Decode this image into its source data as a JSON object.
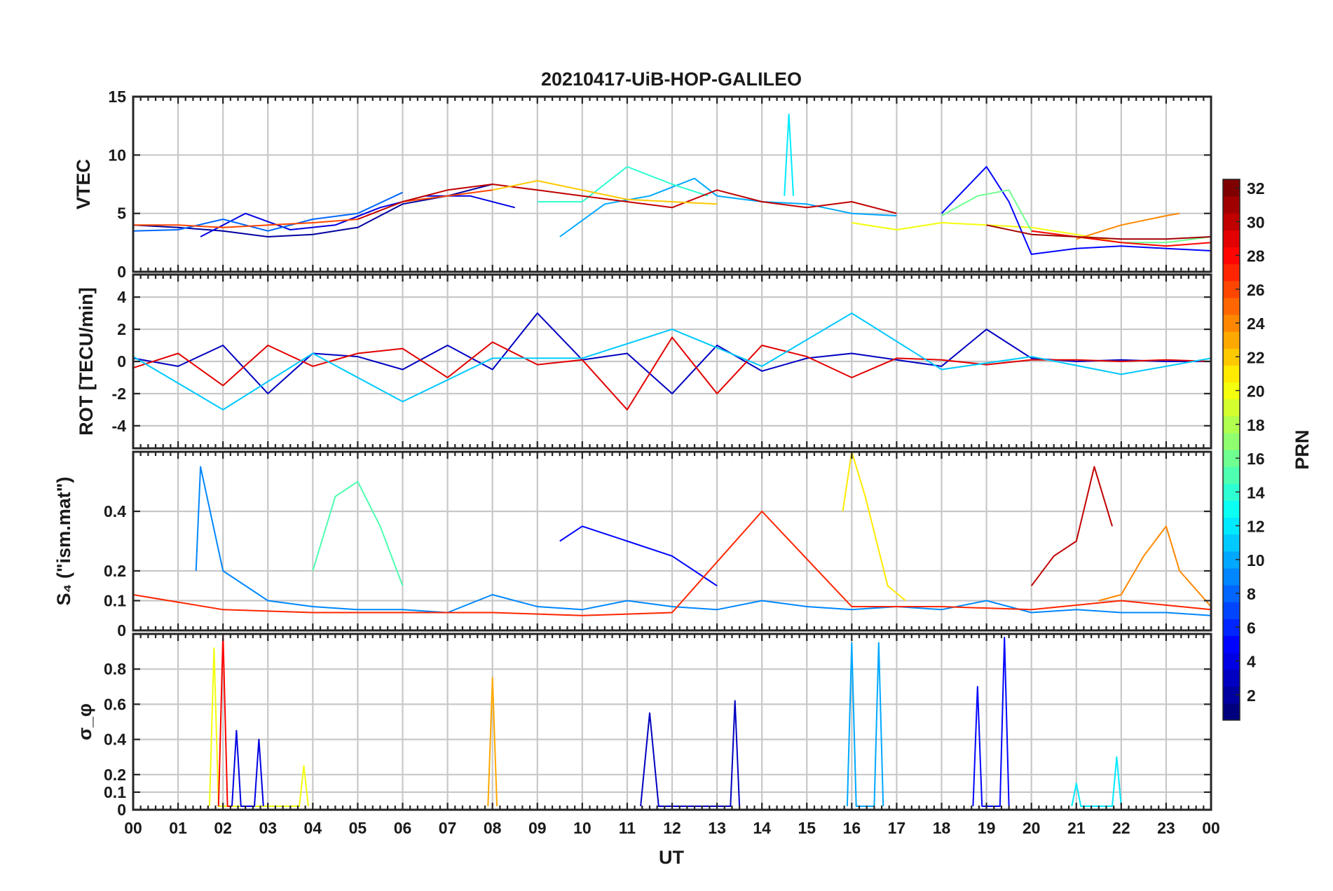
{
  "figure": {
    "title": "20210417-UiB-HOP-GALILEO",
    "xlabel": "UT",
    "x_tick_labels": [
      "00",
      "01",
      "02",
      "03",
      "04",
      "05",
      "06",
      "07",
      "08",
      "09",
      "10",
      "11",
      "12",
      "13",
      "14",
      "15",
      "16",
      "17",
      "18",
      "19",
      "20",
      "21",
      "22",
      "23",
      "00"
    ],
    "colorbar": {
      "label": "PRN",
      "range": [
        1,
        32
      ],
      "tick_labels": [
        "2",
        "4",
        "6",
        "8",
        "10",
        "12",
        "14",
        "16",
        "18",
        "20",
        "22",
        "24",
        "26",
        "28",
        "30",
        "32"
      ],
      "colormap": "jet",
      "colormap_stops": [
        "#00007f",
        "#0000ff",
        "#007fff",
        "#00ffff",
        "#7fff7f",
        "#ffff00",
        "#ff7f00",
        "#ff0000",
        "#7f0000"
      ]
    }
  },
  "chart_data": [
    {
      "type": "line",
      "ylabel": "VTEC",
      "ylim": [
        0,
        15
      ],
      "y_tick_labels": [
        "0",
        "5",
        "10",
        "15"
      ],
      "y_ticks": [
        0,
        5,
        10,
        15
      ],
      "x_unit": "hours UT",
      "xlim": [
        0,
        24
      ],
      "grid": true,
      "series": [
        {
          "prn": 2,
          "x": [
            0,
            1,
            2,
            3,
            4,
            5,
            6,
            7,
            8
          ],
          "y": [
            4,
            3.8,
            3.5,
            3,
            3.2,
            3.8,
            5.8,
            6.5,
            7.5
          ]
        },
        {
          "prn": 4,
          "x": [
            1.5,
            2.5,
            3.5,
            4.5,
            5.5,
            6.5,
            7.5,
            8.5
          ],
          "y": [
            3,
            5,
            3.6,
            4,
            5.5,
            6.5,
            6.5,
            5.5
          ]
        },
        {
          "prn": 8,
          "x": [
            0,
            1,
            2,
            3,
            4,
            5,
            6
          ],
          "y": [
            3.5,
            3.6,
            4.5,
            3.5,
            4.5,
            5,
            6.8
          ]
        },
        {
          "prn": 10,
          "x": [
            9.5,
            10.5,
            11.5,
            12.5,
            13,
            14,
            15,
            16,
            17
          ],
          "y": [
            3,
            5.8,
            6.5,
            8,
            6.5,
            6,
            5.8,
            5,
            4.8
          ]
        },
        {
          "prn": 14,
          "x": [
            9,
            10,
            11,
            12,
            12.8
          ],
          "y": [
            6,
            6,
            9,
            7.5,
            6.5
          ]
        },
        {
          "prn": 26,
          "x": [
            0,
            1,
            2,
            3,
            4,
            5,
            6,
            7,
            8
          ],
          "y": [
            4,
            4,
            3.8,
            4,
            4.2,
            4.5,
            6,
            6.5,
            7
          ]
        },
        {
          "prn": 30,
          "x": [
            5,
            6,
            7,
            8,
            9,
            10,
            11,
            12,
            13,
            14,
            15,
            16,
            17
          ],
          "y": [
            4.5,
            6,
            7,
            7.5,
            7,
            6.5,
            6,
            5.5,
            7,
            6,
            5.5,
            6,
            5
          ]
        },
        {
          "prn": 22,
          "x": [
            8,
            9,
            10,
            11,
            12,
            13
          ],
          "y": [
            7,
            7.8,
            7,
            6.2,
            6,
            5.8
          ]
        },
        {
          "prn": 20,
          "x": [
            16,
            17,
            18,
            19,
            20,
            21,
            22
          ],
          "y": [
            4.2,
            3.6,
            4.2,
            4,
            3.8,
            3.2,
            2.5
          ]
        },
        {
          "prn": 5,
          "x": [
            18,
            19,
            19.5,
            20,
            21,
            22,
            23,
            24
          ],
          "y": [
            5,
            9,
            6,
            1.5,
            2,
            2.2,
            2,
            1.8
          ]
        },
        {
          "prn": 16,
          "x": [
            18,
            18.8,
            19.5,
            20,
            21,
            22,
            23,
            24
          ],
          "y": [
            4.8,
            6.5,
            7,
            3.5,
            3,
            2.5,
            2.5,
            3
          ]
        },
        {
          "prn": 24,
          "x": [
            21,
            22,
            23,
            23.3
          ],
          "y": [
            2.8,
            4,
            4.8,
            5
          ]
        },
        {
          "prn": 28,
          "x": [
            20,
            21,
            22,
            23,
            24
          ],
          "y": [
            3.5,
            3,
            2.5,
            2.2,
            2.5
          ]
        },
        {
          "prn": 31,
          "x": [
            19,
            20,
            21,
            22,
            23,
            24
          ],
          "y": [
            4,
            3.2,
            3,
            2.8,
            2.8,
            3
          ]
        },
        {
          "prn": 12,
          "x": [
            14.5,
            14.6,
            14.7
          ],
          "y": [
            6.5,
            13.5,
            6.5
          ]
        }
      ]
    },
    {
      "type": "line",
      "ylabel": "ROT [TECU/min]",
      "ylim": [
        -5.4,
        5.4
      ],
      "y_tick_labels": [
        "-4",
        "-2",
        "0",
        "2",
        "4"
      ],
      "y_ticks": [
        -4,
        -2,
        0,
        2,
        4
      ],
      "x_unit": "hours UT",
      "xlim": [
        0,
        24
      ],
      "grid": true,
      "series": [
        {
          "prn": 3,
          "x": [
            0,
            1,
            2,
            3,
            4,
            5,
            6,
            7,
            8,
            9,
            10,
            11,
            12,
            13,
            14,
            15,
            16,
            17,
            18,
            19,
            20,
            21,
            22,
            23,
            24
          ],
          "y": [
            0.2,
            -0.3,
            1,
            -2,
            0.5,
            0.3,
            -0.5,
            1,
            -0.5,
            3,
            0.1,
            0.5,
            -2,
            1,
            -0.6,
            0.2,
            0.5,
            0.1,
            -0.3,
            2,
            0.2,
            0,
            0.1,
            0,
            0
          ]
        },
        {
          "prn": 29,
          "x": [
            0,
            1,
            2,
            3,
            4,
            5,
            6,
            7,
            8,
            9,
            10,
            11,
            12,
            13,
            14,
            15,
            16,
            17,
            18,
            19,
            20,
            21,
            22,
            23,
            24
          ],
          "y": [
            -0.4,
            0.5,
            -1.5,
            1,
            -0.3,
            0.5,
            0.8,
            -1,
            1.2,
            -0.2,
            0.1,
            -3,
            1.5,
            -2,
            1,
            0.3,
            -1,
            0.2,
            0.1,
            -0.2,
            0.1,
            0.1,
            0,
            0.1,
            0
          ]
        },
        {
          "prn": 11,
          "x": [
            0,
            2,
            4,
            6,
            8,
            10,
            12,
            14,
            16,
            18,
            20,
            22,
            24
          ],
          "y": [
            0.3,
            -3,
            0.5,
            -2.5,
            0.2,
            0.2,
            2,
            -0.3,
            3,
            -0.5,
            0.3,
            -0.8,
            0.2
          ]
        }
      ]
    },
    {
      "type": "line",
      "ylabel": "S₄ (\"ism.mat\")",
      "ylim": [
        0,
        0.6
      ],
      "y_tick_labels": [
        "0",
        "0.1",
        "0.2",
        "0.4"
      ],
      "y_ticks": [
        0,
        0.1,
        0.2,
        0.4
      ],
      "x_unit": "hours UT",
      "xlim": [
        0,
        24
      ],
      "grid": true,
      "series": [
        {
          "prn": 9,
          "x": [
            1.4,
            1.5,
            2,
            3,
            4,
            5,
            6,
            7,
            8,
            9,
            10,
            11,
            12,
            13,
            14,
            15,
            16,
            17,
            18,
            19,
            20,
            21,
            22,
            23,
            24
          ],
          "y": [
            0.2,
            0.55,
            0.2,
            0.1,
            0.08,
            0.07,
            0.07,
            0.06,
            0.12,
            0.08,
            0.07,
            0.1,
            0.08,
            0.07,
            0.1,
            0.08,
            0.07,
            0.08,
            0.07,
            0.1,
            0.06,
            0.07,
            0.06,
            0.06,
            0.05
          ]
        },
        {
          "prn": 15,
          "x": [
            4,
            4.5,
            5,
            5.5,
            6
          ],
          "y": [
            0.2,
            0.45,
            0.5,
            0.35,
            0.15
          ]
        },
        {
          "prn": 5,
          "x": [
            9.5,
            10,
            11,
            12,
            13
          ],
          "y": [
            0.3,
            0.35,
            0.3,
            0.25,
            0.15
          ]
        },
        {
          "prn": 21,
          "x": [
            15.8,
            16,
            16.3,
            16.8,
            17.2
          ],
          "y": [
            0.4,
            0.6,
            0.45,
            0.15,
            0.1
          ]
        },
        {
          "prn": 30,
          "x": [
            20,
            20.5,
            21,
            21.4,
            21.8
          ],
          "y": [
            0.15,
            0.25,
            0.3,
            0.55,
            0.35
          ]
        },
        {
          "prn": 24,
          "x": [
            21.5,
            22,
            22.5,
            23,
            23.3,
            24
          ],
          "y": [
            0.1,
            0.12,
            0.25,
            0.35,
            0.2,
            0.08
          ]
        },
        {
          "prn": 27,
          "x": [
            0,
            2,
            4,
            6,
            8,
            10,
            12,
            14,
            16,
            18,
            20,
            22,
            24
          ],
          "y": [
            0.12,
            0.07,
            0.06,
            0.06,
            0.06,
            0.05,
            0.06,
            0.4,
            0.08,
            0.08,
            0.07,
            0.1,
            0.07
          ]
        }
      ]
    },
    {
      "type": "line",
      "ylabel": "σ_φ",
      "ylim": [
        0,
        1
      ],
      "y_tick_labels": [
        "0",
        "0.1",
        "0.2",
        "0.4",
        "0.6",
        "0.8"
      ],
      "y_ticks": [
        0,
        0.1,
        0.2,
        0.4,
        0.6,
        0.8
      ],
      "x_unit": "hours UT",
      "xlim": [
        0,
        24
      ],
      "grid": true,
      "series": [
        {
          "prn": 20,
          "x": [
            1.7,
            1.8,
            1.9,
            2.1,
            3.7,
            3.8,
            3.9
          ],
          "y": [
            0.02,
            0.92,
            0.02,
            0.02,
            0.02,
            0.25,
            0.02
          ]
        },
        {
          "prn": 28,
          "x": [
            1.9,
            2,
            2.1,
            2.2
          ],
          "y": [
            0.02,
            1,
            0.02,
            0.02
          ]
        },
        {
          "prn": 4,
          "x": [
            2.2,
            2.3,
            2.4,
            2.7,
            2.8,
            2.9
          ],
          "y": [
            0.02,
            0.45,
            0.02,
            0.02,
            0.4,
            0.02
          ]
        },
        {
          "prn": 23,
          "x": [
            7.9,
            8,
            8.1
          ],
          "y": [
            0.02,
            0.75,
            0.02
          ]
        },
        {
          "prn": 3,
          "x": [
            11.3,
            11.5,
            11.7,
            13.3,
            13.4,
            13.5
          ],
          "y": [
            0.02,
            0.55,
            0.02,
            0.02,
            0.62,
            0.02
          ]
        },
        {
          "prn": 10,
          "x": [
            15.9,
            16,
            16.1,
            16.5,
            16.6,
            16.7
          ],
          "y": [
            0.02,
            0.95,
            0.02,
            0.02,
            0.95,
            0.02
          ]
        },
        {
          "prn": 5,
          "x": [
            18.7,
            18.8,
            18.9,
            19.3,
            19.4,
            19.5
          ],
          "y": [
            0.02,
            0.7,
            0.02,
            0.02,
            0.98,
            0.02
          ]
        },
        {
          "prn": 12,
          "x": [
            20.9,
            21,
            21.1,
            21.8,
            21.9,
            22
          ],
          "y": [
            0.02,
            0.15,
            0.02,
            0.02,
            0.3,
            0.02
          ]
        }
      ]
    }
  ]
}
